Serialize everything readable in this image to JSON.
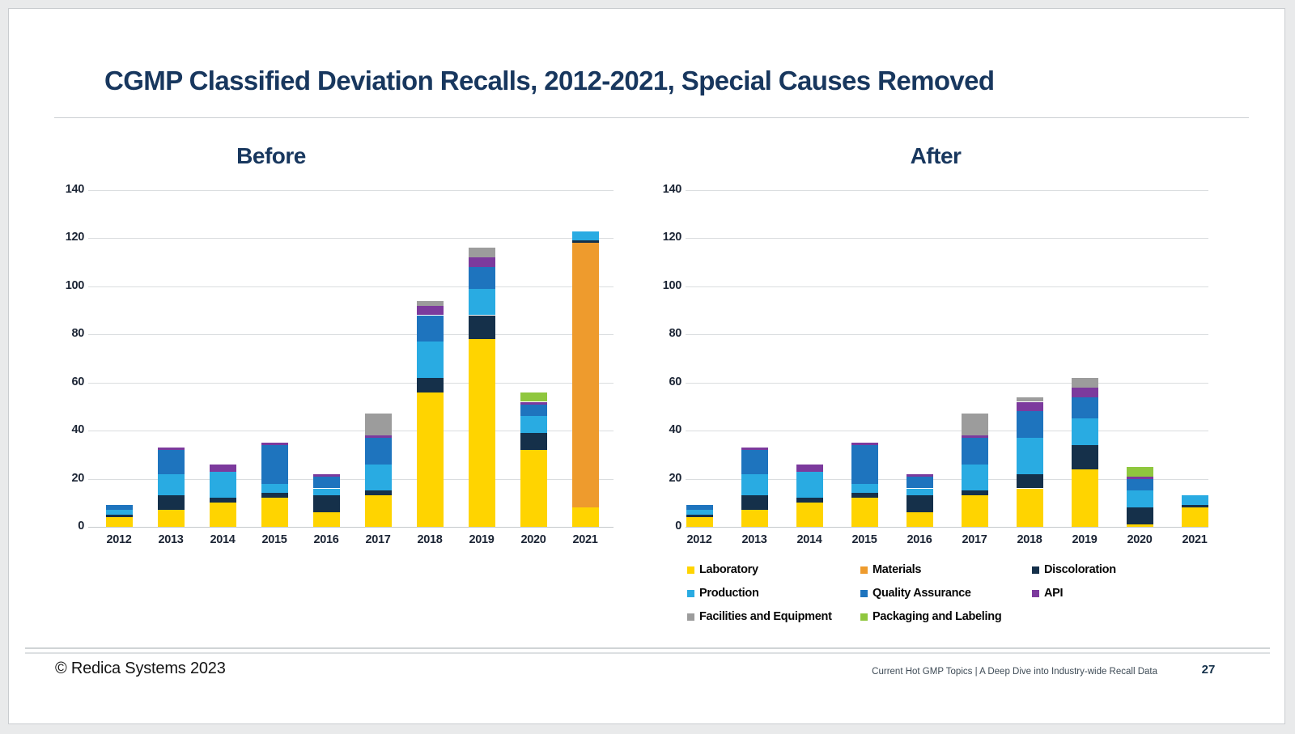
{
  "page": {
    "title": "CGMP Classified Deviation Recalls, 2012-2021, Special Causes Removed",
    "footer": {
      "copyright": "© Redica Systems 2023",
      "source": "Current Hot GMP Topics |  A Deep Dive into Industry-wide Recall Data",
      "page_number": "27"
    }
  },
  "colors": {
    "Laboratory": "#FFD400",
    "Materials": "#EE9B2D",
    "Discoloration": "#15304A",
    "Production": "#29ABE2",
    "Quality Assurance": "#1E74BE",
    "API": "#7C3A9D",
    "Facilities and Equipment": "#9C9C9C",
    "Packaging and Labeling": "#8FC73E",
    "title_navy": "#18375E",
    "gridline": "#DADDDF"
  },
  "legend": {
    "items": [
      {
        "label": "Laboratory"
      },
      {
        "label": "Materials"
      },
      {
        "label": "Discoloration"
      },
      {
        "label": "Production"
      },
      {
        "label": "Quality Assurance"
      },
      {
        "label": "API"
      },
      {
        "label": "Facilities and Equipment"
      },
      {
        "label": "Packaging and Labeling"
      }
    ]
  },
  "chart_data": [
    {
      "type": "bar",
      "stacked": true,
      "title": "Before",
      "categories": [
        "2012",
        "2013",
        "2014",
        "2015",
        "2016",
        "2017",
        "2018",
        "2019",
        "2020",
        "2021"
      ],
      "series": [
        {
          "name": "Laboratory",
          "values": [
            4,
            7,
            10,
            12,
            6,
            13,
            56,
            78,
            32,
            8
          ]
        },
        {
          "name": "Materials",
          "values": [
            0,
            0,
            0,
            0,
            0,
            0,
            0,
            0,
            0,
            110
          ]
        },
        {
          "name": "Discoloration",
          "values": [
            1,
            6,
            2,
            2,
            7,
            2,
            6,
            10,
            7,
            1
          ]
        },
        {
          "name": "Production",
          "values": [
            2,
            9,
            11,
            4,
            3,
            11,
            15,
            11,
            7,
            4
          ]
        },
        {
          "name": "Quality Assurance",
          "values": [
            2,
            10,
            0,
            16,
            5,
            11,
            11,
            9,
            5,
            0
          ]
        },
        {
          "name": "API",
          "values": [
            0,
            1,
            3,
            1,
            1,
            1,
            4,
            4,
            1,
            0
          ]
        },
        {
          "name": "Facilities and Equipment",
          "values": [
            0,
            0,
            0,
            0,
            0,
            9,
            2,
            4,
            0,
            0
          ]
        },
        {
          "name": "Packaging and Labeling",
          "values": [
            0,
            0,
            0,
            0,
            0,
            0,
            0,
            0,
            4,
            0
          ]
        }
      ],
      "totals": [
        9,
        33,
        26,
        35,
        22,
        47,
        94,
        116,
        56,
        123
      ],
      "xlabel": "",
      "ylabel": "",
      "ylim": [
        0,
        140
      ],
      "yticks": [
        0,
        20,
        40,
        60,
        80,
        100,
        120,
        140
      ],
      "grid": true,
      "legend_position": "shared-below-right"
    },
    {
      "type": "bar",
      "stacked": true,
      "title": "After",
      "categories": [
        "2012",
        "2013",
        "2014",
        "2015",
        "2016",
        "2017",
        "2018",
        "2019",
        "2020",
        "2021"
      ],
      "series": [
        {
          "name": "Laboratory",
          "values": [
            4,
            7,
            10,
            12,
            6,
            13,
            16,
            24,
            1,
            8
          ]
        },
        {
          "name": "Materials",
          "values": [
            0,
            0,
            0,
            0,
            0,
            0,
            0,
            0,
            0,
            0
          ]
        },
        {
          "name": "Discoloration",
          "values": [
            1,
            6,
            2,
            2,
            7,
            2,
            6,
            10,
            7,
            1
          ]
        },
        {
          "name": "Production",
          "values": [
            2,
            9,
            11,
            4,
            3,
            11,
            15,
            11,
            7,
            4
          ]
        },
        {
          "name": "Quality Assurance",
          "values": [
            2,
            10,
            0,
            16,
            5,
            11,
            11,
            9,
            5,
            0
          ]
        },
        {
          "name": "API",
          "values": [
            0,
            1,
            3,
            1,
            1,
            1,
            4,
            4,
            1,
            0
          ]
        },
        {
          "name": "Facilities and Equipment",
          "values": [
            0,
            0,
            0,
            0,
            0,
            9,
            2,
            4,
            0,
            0
          ]
        },
        {
          "name": "Packaging and Labeling",
          "values": [
            0,
            0,
            0,
            0,
            0,
            0,
            0,
            0,
            4,
            0
          ]
        }
      ],
      "totals": [
        9,
        33,
        26,
        35,
        22,
        47,
        54,
        62,
        25,
        13
      ],
      "xlabel": "",
      "ylabel": "",
      "ylim": [
        0,
        140
      ],
      "yticks": [
        0,
        20,
        40,
        60,
        80,
        100,
        120,
        140
      ],
      "grid": true,
      "legend_position": "shared-below-right"
    }
  ]
}
